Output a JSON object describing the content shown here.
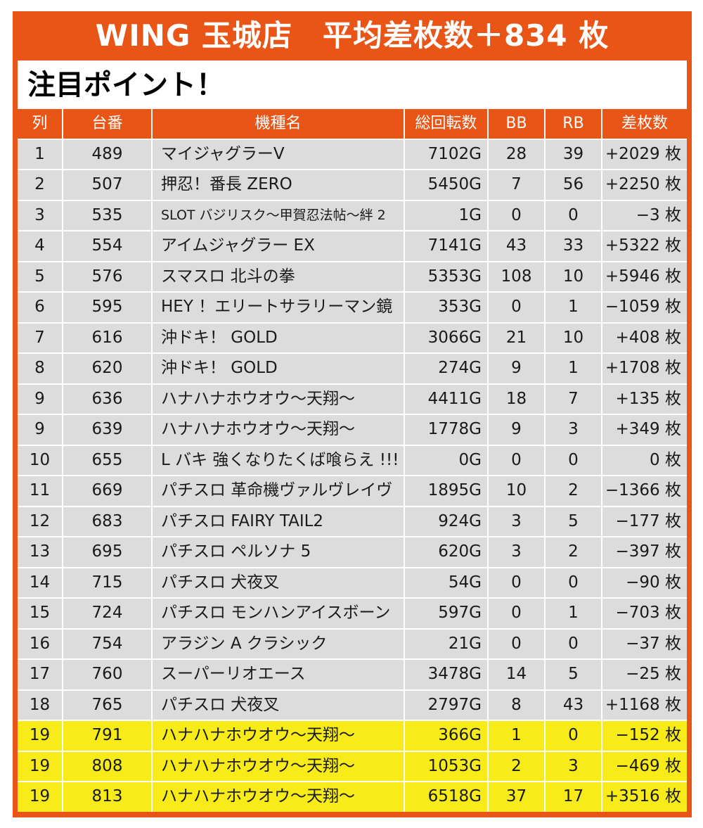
{
  "banner": {
    "title": "WING 玉城店　平均差枚数＋834 枚"
  },
  "subtitle": "注目ポイント！",
  "table": {
    "headers": [
      "列",
      "台番",
      "機種名",
      "総回転数",
      "BB",
      "RB",
      "差枚数"
    ],
    "rows": [
      {
        "col": "1",
        "no": "489",
        "name": "マイジャグラーV",
        "spins": "7102G",
        "bb": "28",
        "rb": "39",
        "diff": "+2029 枚",
        "highlight": false
      },
      {
        "col": "2",
        "no": "507",
        "name": "押忍！番長 ZERO",
        "spins": "5450G",
        "bb": "7",
        "rb": "56",
        "diff": "+2250 枚",
        "highlight": false
      },
      {
        "col": "3",
        "no": "535",
        "name": "SLOT バジリスク～甲賀忍法帖～絆 2",
        "spins": "1G",
        "bb": "0",
        "rb": "0",
        "diff": "−3 枚",
        "highlight": false
      },
      {
        "col": "4",
        "no": "554",
        "name": "アイムジャグラー EX",
        "spins": "7141G",
        "bb": "43",
        "rb": "33",
        "diff": "+5322 枚",
        "highlight": false
      },
      {
        "col": "5",
        "no": "576",
        "name": "スマスロ 北斗の拳",
        "spins": "5353G",
        "bb": "108",
        "rb": "10",
        "diff": "+5946 枚",
        "highlight": false
      },
      {
        "col": "6",
        "no": "595",
        "name": "HEY ！エリートサラリーマン鏡",
        "spins": "353G",
        "bb": "0",
        "rb": "1",
        "diff": "−1059 枚",
        "highlight": false
      },
      {
        "col": "7",
        "no": "616",
        "name": "沖ドキ！ GOLD",
        "spins": "3066G",
        "bb": "21",
        "rb": "10",
        "diff": "+408 枚",
        "highlight": false
      },
      {
        "col": "8",
        "no": "620",
        "name": "沖ドキ！ GOLD",
        "spins": "274G",
        "bb": "9",
        "rb": "1",
        "diff": "+1708 枚",
        "highlight": false
      },
      {
        "col": "9",
        "no": "636",
        "name": "ハナハナホウオウ～天翔～",
        "spins": "4411G",
        "bb": "18",
        "rb": "7",
        "diff": "+135 枚",
        "highlight": false
      },
      {
        "col": "9",
        "no": "639",
        "name": "ハナハナホウオウ～天翔～",
        "spins": "1778G",
        "bb": "9",
        "rb": "3",
        "diff": "+349 枚",
        "highlight": false
      },
      {
        "col": "10",
        "no": "655",
        "name": "L バキ 強くなりたくば喰らえ !!!",
        "spins": "0G",
        "bb": "0",
        "rb": "0",
        "diff": "0 枚",
        "highlight": false
      },
      {
        "col": "11",
        "no": "669",
        "name": "パチスロ 革命機ヴァルヴレイヴ",
        "spins": "1895G",
        "bb": "10",
        "rb": "2",
        "diff": "−1366 枚",
        "highlight": false
      },
      {
        "col": "12",
        "no": "683",
        "name": "パチスロ FAIRY TAIL2",
        "spins": "924G",
        "bb": "3",
        "rb": "5",
        "diff": "−177 枚",
        "highlight": false
      },
      {
        "col": "13",
        "no": "695",
        "name": "パチスロ ペルソナ 5",
        "spins": "620G",
        "bb": "3",
        "rb": "2",
        "diff": "−397 枚",
        "highlight": false
      },
      {
        "col": "14",
        "no": "715",
        "name": "パチスロ 犬夜叉",
        "spins": "54G",
        "bb": "0",
        "rb": "0",
        "diff": "−90 枚",
        "highlight": false
      },
      {
        "col": "15",
        "no": "724",
        "name": "パチスロ モンハンアイスボーン",
        "spins": "597G",
        "bb": "0",
        "rb": "1",
        "diff": "−703 枚",
        "highlight": false
      },
      {
        "col": "16",
        "no": "754",
        "name": "アラジン A クラシック",
        "spins": "21G",
        "bb": "0",
        "rb": "0",
        "diff": "−37 枚",
        "highlight": false
      },
      {
        "col": "17",
        "no": "760",
        "name": "スーパーリオエース",
        "spins": "3478G",
        "bb": "14",
        "rb": "5",
        "diff": "−25 枚",
        "highlight": false
      },
      {
        "col": "18",
        "no": "765",
        "name": "パチスロ 犬夜叉",
        "spins": "2797G",
        "bb": "8",
        "rb": "43",
        "diff": "+1168 枚",
        "highlight": false
      },
      {
        "col": "19",
        "no": "791",
        "name": "ハナハナホウオウ～天翔～",
        "spins": "366G",
        "bb": "1",
        "rb": "0",
        "diff": "−152 枚",
        "highlight": true
      },
      {
        "col": "19",
        "no": "808",
        "name": "ハナハナホウオウ～天翔～",
        "spins": "1053G",
        "bb": "2",
        "rb": "3",
        "diff": "−469 枚",
        "highlight": true
      },
      {
        "col": "19",
        "no": "813",
        "name": "ハナハナホウオウ～天翔～",
        "spins": "6518G",
        "bb": "37",
        "rb": "17",
        "diff": "+3516 枚",
        "highlight": true
      }
    ]
  },
  "colors": {
    "accent": "#e85516",
    "row_gray": "#dcdcdc",
    "highlight_yellow": "#f7ec1a"
  }
}
